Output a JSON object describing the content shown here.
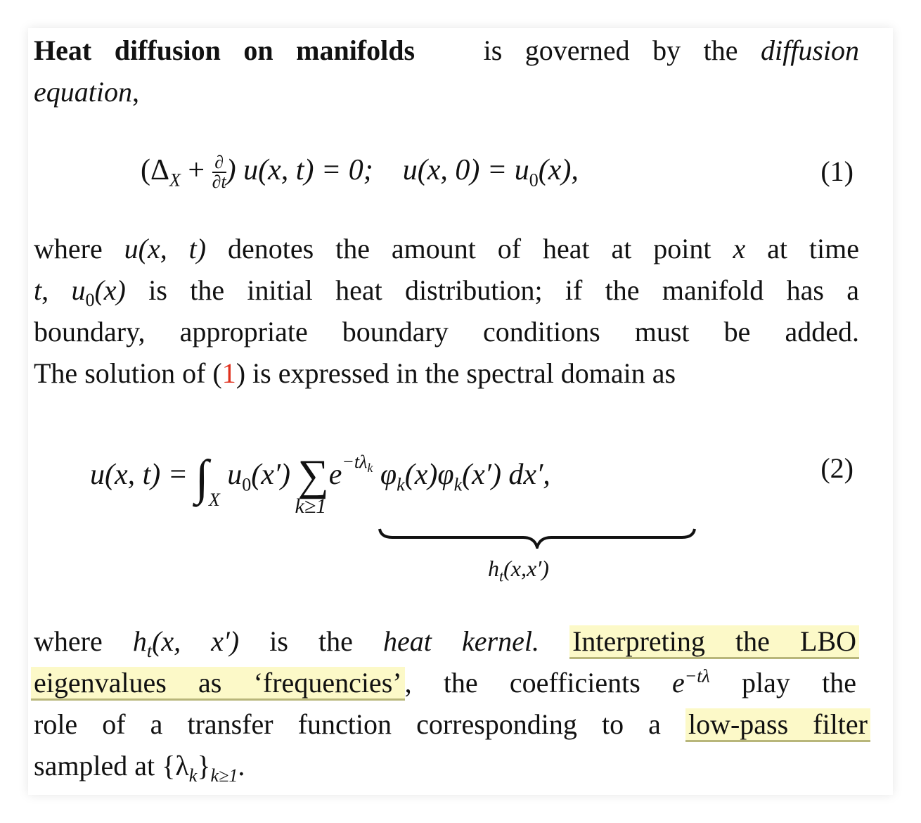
{
  "para1": {
    "heading": "Heat diffusion on manifolds",
    "text1": "is governed by the",
    "italic1": "diffusion",
    "italic2": "equation",
    "text2": ","
  },
  "eq1": {
    "lhs": "(Δ",
    "lhs_sub": "X",
    "plus": " + ",
    "frac_num": "∂",
    "frac_den": "∂t",
    "mid": ") u(x, t) = 0;",
    "rhs": "u(x, 0) = u",
    "rhs_sub": "0",
    "rhs_end": "(x),",
    "number": "(1)"
  },
  "para2": {
    "l1a": "where",
    "l1m": "u(x, t)",
    "l1b": "denotes the amount of heat at point",
    "l1x": "x",
    "l1c": "at time",
    "l2t": "t",
    "l2a": ",",
    "l2u": "u",
    "l2sub": "0",
    "l2x": "(x)",
    "l2b": "is the initial heat distribution; if the manifold has a",
    "l3": "boundary, appropriate boundary conditions must be added.",
    "l4a": "The solution of (",
    "l4ref": "1",
    "l4b": ") is expressed in the spectral domain as"
  },
  "eq2": {
    "lhs": "u(x, t) =",
    "integral": "∫",
    "int_sub": "X",
    "u0": "u",
    "u0_sub": "0",
    "u0_arg": "(x′)",
    "sum": "∑",
    "sum_sub": "k≥1",
    "exp_base": "e",
    "exp_sup": "−tλ",
    "exp_sup_sub": "k",
    "phi1": "φ",
    "phi_sub": "k",
    "phi1_arg": "(x)",
    "phi2": "φ",
    "phi2_arg": "(x′) dx′,",
    "brace_label": "h",
    "brace_label_sub": "t",
    "brace_label_arg": "(x,x′)",
    "number": "(2)"
  },
  "para3": {
    "l1a": "where",
    "l1h": "h",
    "l1hsub": "t",
    "l1harg": "(x, x′)",
    "l1b": "is the",
    "l1i": "heat kernel.",
    "hl1a": "Interpreting the LBO",
    "hl1b": "eigenvalues as ‘frequencies’",
    "l2b": ", the coefficients",
    "l2e": "e",
    "l2sup": "−tλ",
    "l2c": "play the",
    "l3a": "role of a transfer function corresponding to a",
    "hl2": "low-pass filter",
    "l4a": "sampled at {λ",
    "l4sub1": "k",
    "l4b": "}",
    "l4sub2": "k≥1",
    "l4c": "."
  },
  "colors": {
    "highlight": "#fcf9c8",
    "highlight_underline": "#b8b67a",
    "reference": "#e0301e"
  }
}
